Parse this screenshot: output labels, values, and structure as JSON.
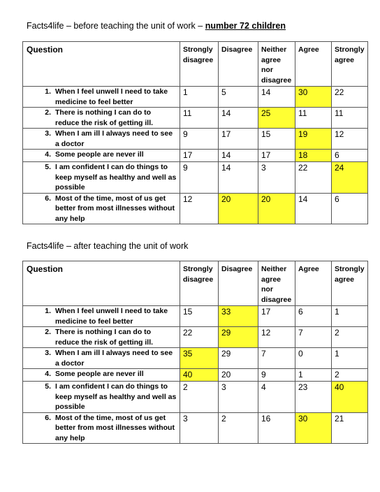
{
  "before": {
    "title_plain": "Facts4life – before teaching the unit of work – ",
    "title_bold": "number 72 children",
    "headers": {
      "question": "Question",
      "strongly_disagree": "Strongly disagree",
      "disagree": "Disagree",
      "neither": "Neither agree nor disagree",
      "agree": "Agree",
      "strongly_agree": "Strongly agree"
    },
    "rows": [
      {
        "num": "1.",
        "text": "When I feel unwell I need to take medicine to feel better",
        "values": [
          "1",
          "5",
          "14",
          "30",
          "22"
        ],
        "highlight": [
          false,
          false,
          false,
          true,
          false
        ]
      },
      {
        "num": "2.",
        "text": "There is nothing I can do to reduce the risk of getting ill.",
        "values": [
          "11",
          "14",
          "25",
          "11",
          "11"
        ],
        "highlight": [
          false,
          false,
          true,
          false,
          false
        ]
      },
      {
        "num": "3.",
        "text": "When I am ill I always need to see a doctor",
        "values": [
          "9",
          "17",
          "15",
          "19",
          "12"
        ],
        "highlight": [
          false,
          false,
          false,
          true,
          false
        ]
      },
      {
        "num": "4.",
        "text": "Some people are never ill",
        "values": [
          "17",
          "14",
          "17",
          "18",
          "6"
        ],
        "highlight": [
          false,
          false,
          false,
          true,
          false
        ]
      },
      {
        "num": "5.",
        "text": "I am confident I can do things to keep myself as healthy and well as possible",
        "values": [
          "9",
          "14",
          "3",
          "22",
          "24"
        ],
        "highlight": [
          false,
          false,
          false,
          false,
          true
        ]
      },
      {
        "num": "6.",
        "text": "Most of the time, most of us get better from most illnesses without any help",
        "values": [
          "12",
          "20",
          "20",
          "14",
          "6"
        ],
        "highlight": [
          false,
          true,
          true,
          false,
          false
        ]
      }
    ]
  },
  "after": {
    "title_plain": "Facts4life – after teaching the unit of work",
    "headers": {
      "question": "Question",
      "strongly_disagree": "Strongly disagree",
      "disagree": "Disagree",
      "neither": "Neither agree nor disagree",
      "agree": "Agree",
      "strongly_agree": "Strongly agree"
    },
    "rows": [
      {
        "num": "1.",
        "text": "When I feel unwell I need to take medicine to feel better",
        "values": [
          "15",
          "33",
          "17",
          "6",
          "1"
        ],
        "highlight": [
          false,
          true,
          false,
          false,
          false
        ]
      },
      {
        "num": "2.",
        "text": "There is nothing I can do to reduce the risk of getting ill.",
        "values": [
          "22",
          "29",
          "12",
          "7",
          "2"
        ],
        "highlight": [
          false,
          true,
          false,
          false,
          false
        ]
      },
      {
        "num": "3.",
        "text": "When I am ill I always need to see a doctor",
        "values": [
          "35",
          "29",
          "7",
          "0",
          "1"
        ],
        "highlight": [
          true,
          false,
          false,
          false,
          false
        ]
      },
      {
        "num": "4.",
        "text": "Some people are never ill",
        "values": [
          "40",
          "20",
          "9",
          "1",
          "2"
        ],
        "highlight": [
          true,
          false,
          false,
          false,
          false
        ]
      },
      {
        "num": "5.",
        "text": "I am confident I can do things to keep myself as healthy and well as possible",
        "values": [
          "2",
          "3",
          "4",
          "23",
          "40"
        ],
        "highlight": [
          false,
          false,
          false,
          false,
          true
        ]
      },
      {
        "num": "6.",
        "text": "Most of the time, most of us get better from most illnesses without any help",
        "values": [
          "3",
          "2",
          "16",
          "30",
          "21"
        ],
        "highlight": [
          false,
          false,
          false,
          true,
          false
        ]
      }
    ]
  }
}
